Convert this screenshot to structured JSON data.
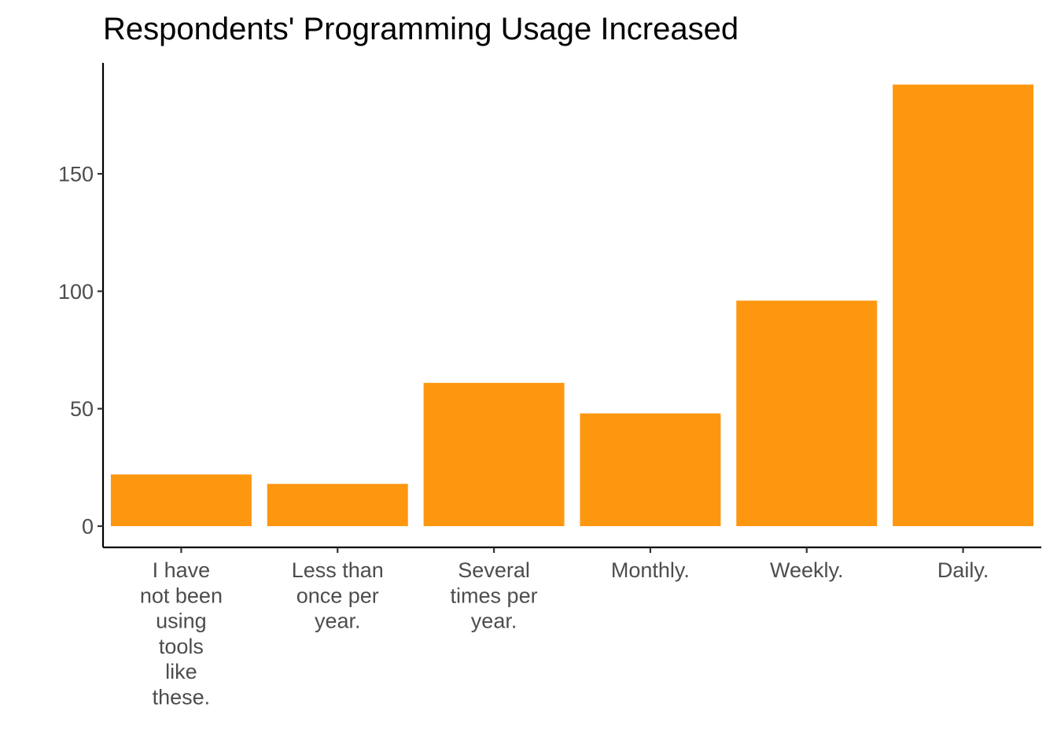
{
  "chart_data": {
    "type": "bar",
    "title": "Respondents' Programming Usage Increased",
    "xlabel": "",
    "ylabel": "",
    "categories": [
      [
        "I have",
        "not been",
        "using",
        "tools",
        "like",
        "these."
      ],
      [
        "Less than",
        "once per",
        "year."
      ],
      [
        "Several",
        "times per",
        "year."
      ],
      [
        "Monthly."
      ],
      [
        "Weekly."
      ],
      [
        "Daily."
      ]
    ],
    "values": [
      22,
      18,
      61,
      48,
      96,
      188
    ],
    "ylim": [
      -9,
      198
    ],
    "yticks": [
      0,
      50,
      100,
      150
    ],
    "grid": false,
    "legend": "none",
    "bar_color": "#FE9710",
    "axis_color": "#000000",
    "tick_label_color": "#4D4D4D"
  }
}
